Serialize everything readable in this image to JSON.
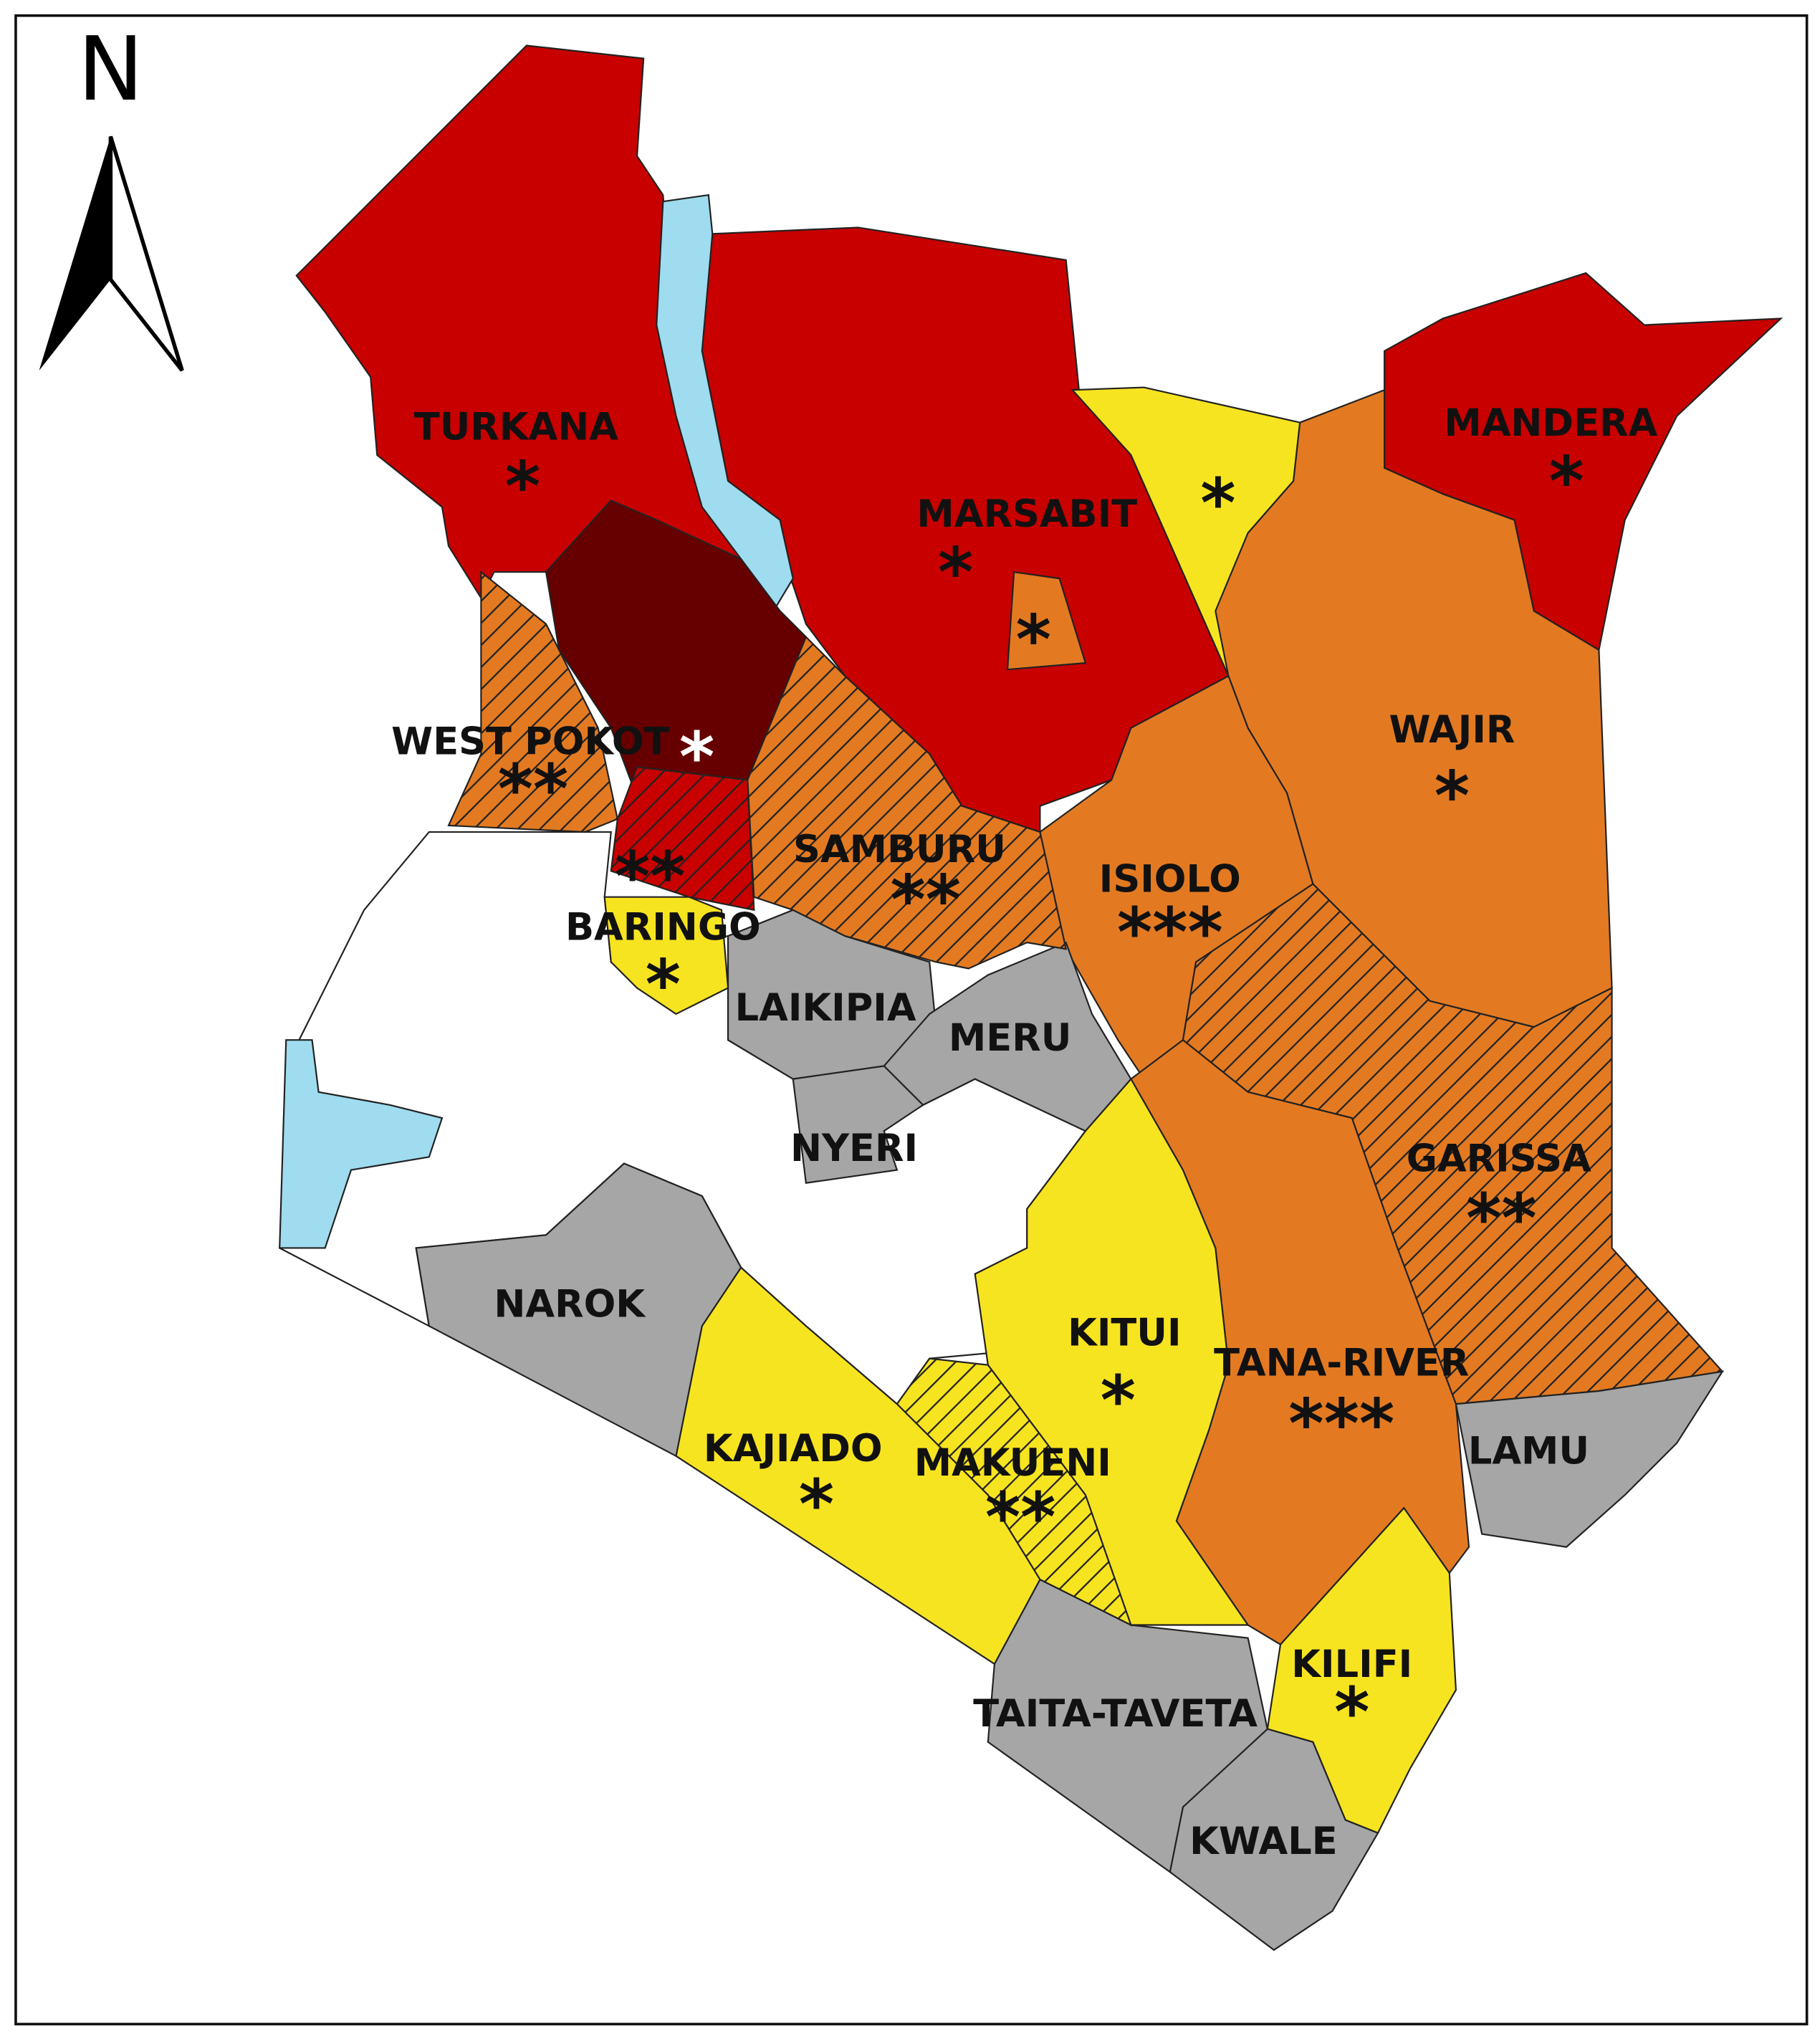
{
  "north": "N",
  "counties": [
    {
      "name": "TURKANA",
      "stars": "*"
    },
    {
      "name": "MARSABIT",
      "stars": "*"
    },
    {
      "name": "MANDERA",
      "stars": "*"
    },
    {
      "name": "WAJIR",
      "stars": "*"
    },
    {
      "name": "WEST POKOT",
      "stars": "**"
    },
    {
      "name": "SAMBURU",
      "stars": "**"
    },
    {
      "name": "ISIOLO",
      "stars": "***"
    },
    {
      "name": "BARINGO",
      "stars": "*"
    },
    {
      "name": "LAIKIPIA"
    },
    {
      "name": "MERU"
    },
    {
      "name": "NYERI"
    },
    {
      "name": "GARISSA",
      "stars": "**"
    },
    {
      "name": "NAROK"
    },
    {
      "name": "KITUI",
      "stars": "*"
    },
    {
      "name": "TANA-RIVER",
      "stars": "***"
    },
    {
      "name": "LAMU"
    },
    {
      "name": "KAJIADO",
      "stars": "*"
    },
    {
      "name": "MAKUENI",
      "stars": "**"
    },
    {
      "name": "KILIFI",
      "stars": "*"
    },
    {
      "name": "TAITA-TAVETA"
    },
    {
      "name": "KWALE"
    }
  ],
  "markers": [
    "*",
    "*",
    "*",
    "**"
  ]
}
